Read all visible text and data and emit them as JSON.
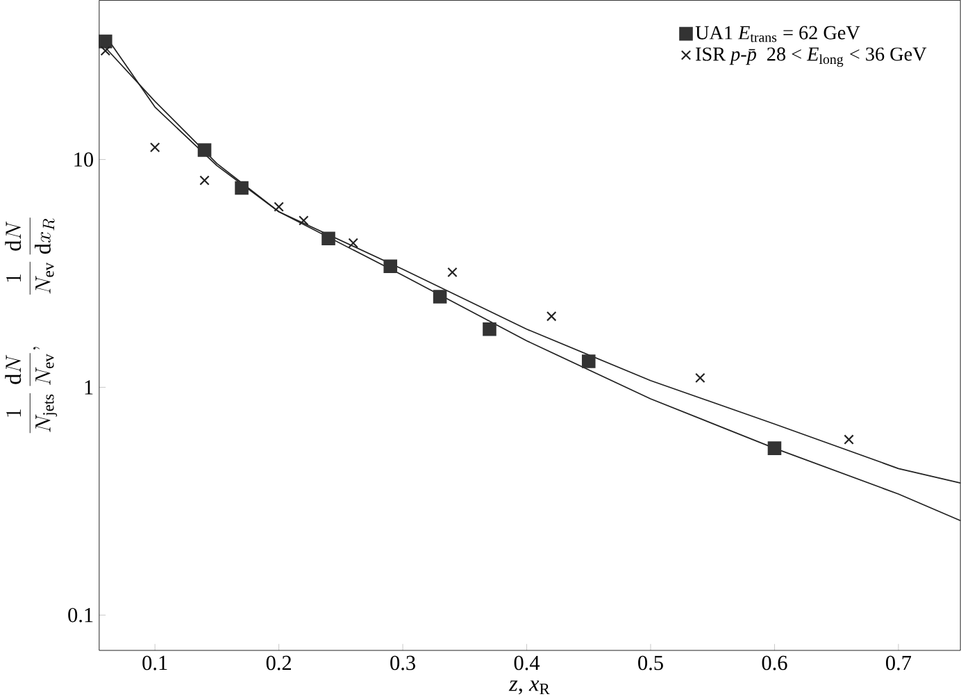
{
  "chart_data": {
    "type": "scatter",
    "xlabel": "*z*, *x*$_{R}$",
    "ylabel": "\\frac{1}{N_{\\mathrm{jets}}}\\,\\frac{\\mathrm{d}N}{N_{\\mathrm{ev}}},\\qquad \\frac{1}{N_{\\mathrm{ev}}}\\,\\frac{\\mathrm{d}N}{\\mathrm{d}x_R}",
    "log": "y",
    "legend": "top right",
    "grid": false,
    "xlim": [
      0.055,
      0.75
    ],
    "ylim": [
      0.07,
      50
    ],
    "xticks": [
      0.1,
      0.2,
      0.3,
      0.4,
      0.5,
      0.6,
      0.7
    ],
    "yticks": [
      0.1,
      1,
      10
    ],
    "series": [
      {
        "name": "UA1 *E*$_{trans}$ = 62 GeV",
        "marker": "square",
        "color": "#333333",
        "x": [
          0.06,
          0.14,
          0.17,
          0.24,
          0.29,
          0.33,
          0.37,
          0.45,
          0.6
        ],
        "values": [
          33,
          11,
          7.5,
          4.5,
          3.4,
          2.5,
          1.8,
          1.3,
          0.54
        ]
      },
      {
        "name": "ISR *p*-*p̄* 28 < *E*$_{long}$ < 36 GeV",
        "marker": "cross",
        "color": "#222222",
        "x": [
          0.06,
          0.1,
          0.14,
          0.2,
          0.22,
          0.26,
          0.34,
          0.42,
          0.54,
          0.66
        ],
        "values": [
          30,
          11.3,
          8.1,
          6.2,
          5.4,
          4.3,
          3.2,
          2.05,
          1.1,
          0.59
        ]
      },
      {
        "type": "line",
        "marker": "none",
        "color": "#222222",
        "x": [
          0.06,
          0.1,
          0.15,
          0.2,
          0.3,
          0.4,
          0.5,
          0.6,
          0.7,
          0.75
        ],
        "values": [
          31,
          18,
          9.6,
          5.9,
          3.3,
          1.8,
          1.07,
          0.69,
          0.44,
          0.38
        ]
      },
      {
        "type": "line",
        "marker": "none",
        "color": "#222222",
        "x": [
          0.06,
          0.1,
          0.15,
          0.2,
          0.3,
          0.4,
          0.5,
          0.6,
          0.7,
          0.75
        ],
        "values": [
          35,
          17,
          9.4,
          5.9,
          3.1,
          1.6,
          0.89,
          0.54,
          0.34,
          0.26
        ]
      }
    ]
  }
}
